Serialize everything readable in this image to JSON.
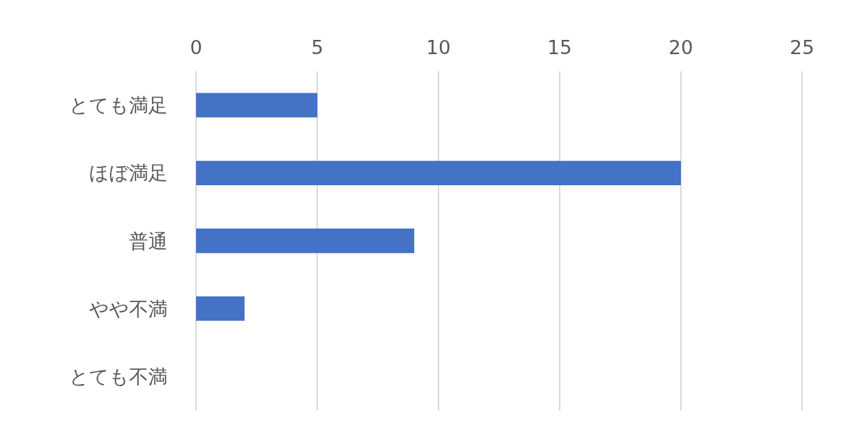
{
  "chart_data": {
    "type": "bar",
    "orientation": "horizontal",
    "categories": [
      "とても満足",
      "ほぼ満足",
      "普通",
      "やや不満",
      "とても不満"
    ],
    "values": [
      5,
      20,
      9,
      2,
      0
    ],
    "color": "#4472c4",
    "xlim": [
      0,
      25
    ],
    "xticks": [
      0,
      5,
      10,
      15,
      20,
      25
    ],
    "grid": "x"
  }
}
